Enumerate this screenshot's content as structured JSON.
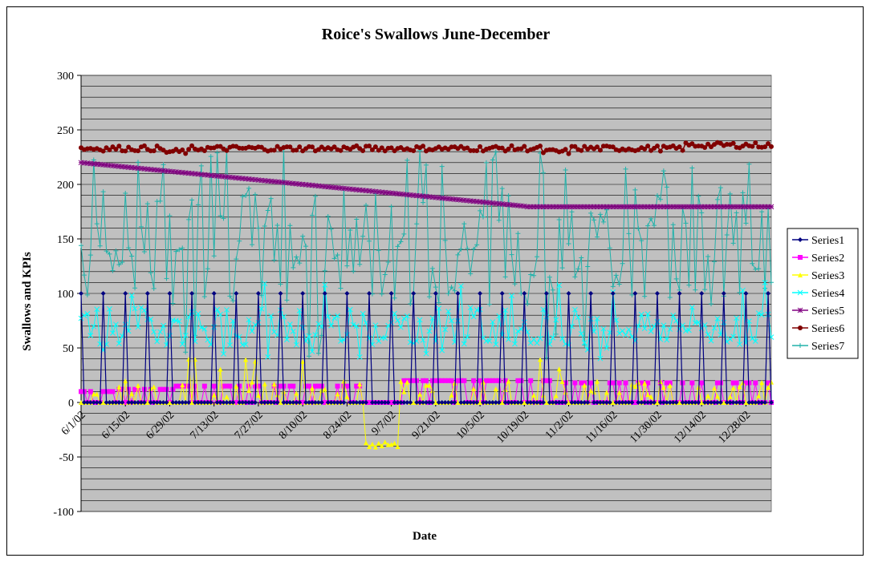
{
  "chart_data": {
    "type": "line",
    "title": "Roice's Swallows June-December",
    "xlabel": "Date",
    "ylabel": "Swallows and KPIs",
    "ylim": [
      -100,
      300
    ],
    "ytick_step": 50,
    "yticks": [
      "-100",
      "-50",
      "0",
      "50",
      "100",
      "150",
      "200",
      "250",
      "300"
    ],
    "x_start": "6/1/02",
    "x_end": "1/5/03",
    "xtick_labels": [
      "6/1/02",
      "6/15/02",
      "6/29/02",
      "7/13/02",
      "7/27/02",
      "8/10/02",
      "8/24/02",
      "9/7/02",
      "9/21/02",
      "10/5/02",
      "10/19/02",
      "11/2/02",
      "11/16/02",
      "11/30/02",
      "12/14/02",
      "12/28/02"
    ],
    "grid": true,
    "plot_background": "#c0c0c0",
    "legend_position": "right",
    "series": [
      {
        "name": "Series1",
        "color": "#000080",
        "marker": "diamond",
        "description_values": "0 with periodic spikes to 100 roughly every 7 days",
        "base": 0,
        "spike": 100,
        "period_days": 7
      },
      {
        "name": "Series2",
        "color": "#ff00ff",
        "marker": "square",
        "levels": [
          [
            0,
            12,
            10
          ],
          [
            12,
            30,
            12
          ],
          [
            30,
            60,
            15
          ],
          [
            60,
            90,
            15
          ],
          [
            90,
            100,
            0
          ],
          [
            100,
            130,
            20
          ],
          [
            130,
            150,
            20
          ],
          [
            150,
            180,
            18
          ],
          [
            180,
            218,
            18
          ]
        ]
      },
      {
        "name": "Series3",
        "color": "#ffff00",
        "marker": "triangle",
        "levels": [
          [
            0,
            90,
            5
          ],
          [
            90,
            101,
            -40
          ],
          [
            101,
            218,
            10
          ]
        ]
      },
      {
        "name": "Series4",
        "color": "#00ffff",
        "marker": "x",
        "range": [
          40,
          110
        ],
        "mean": 70
      },
      {
        "name": "Series5",
        "color": "#800080",
        "marker": "star",
        "points": [
          [
            "6/1/02",
            220
          ],
          [
            "10/19/02",
            180
          ],
          [
            "1/5/03",
            179
          ]
        ]
      },
      {
        "name": "Series6",
        "color": "#800000",
        "marker": "circle",
        "range": [
          226,
          240
        ],
        "mean": 233
      },
      {
        "name": "Series7",
        "color": "#20b2aa",
        "marker": "plus",
        "range": [
          25,
          235
        ],
        "mean": 150
      }
    ]
  }
}
